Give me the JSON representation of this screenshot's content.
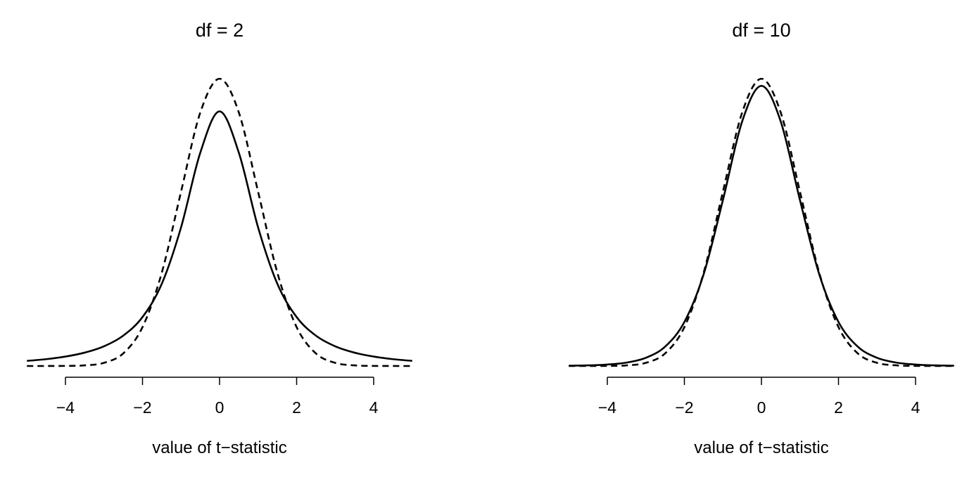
{
  "chart_data": [
    {
      "type": "line",
      "title": "df = 2",
      "xlabel": "value of t−statistic",
      "ylabel": "",
      "xlim": [
        -5,
        5
      ],
      "ylim": [
        0,
        0.4
      ],
      "x_ticks": [
        "−4",
        "−2",
        "0",
        "2",
        "4"
      ],
      "x_tick_values": [
        -4,
        -2,
        0,
        2,
        4
      ],
      "y_axis_shown": false,
      "grid": false,
      "x": [
        -5,
        -4.5,
        -4,
        -3.5,
        -3,
        -2.5,
        -2,
        -1.5,
        -1,
        -0.5,
        0,
        0.5,
        1,
        1.5,
        2,
        2.5,
        3,
        3.5,
        4,
        4.5,
        5
      ],
      "series": [
        {
          "style": "solid",
          "values": [
            0.00713,
            0.00953,
            0.0131,
            0.0186,
            0.0274,
            0.0422,
            0.068,
            0.1141,
            0.1925,
            0.2963,
            0.3536,
            0.2963,
            0.1925,
            0.1141,
            0.068,
            0.0422,
            0.0274,
            0.0186,
            0.0131,
            0.00953,
            0.00713
          ]
        },
        {
          "style": "dashed",
          "values": [
            1.5e-06,
            1.6e-05,
            0.00013,
            0.00087,
            0.0044,
            0.0175,
            0.054,
            0.1295,
            0.242,
            0.3521,
            0.3989,
            0.3521,
            0.242,
            0.1295,
            0.054,
            0.0175,
            0.0044,
            0.00087,
            0.00013,
            1.6e-05,
            1.5e-06
          ]
        }
      ]
    },
    {
      "type": "line",
      "title": "df = 10",
      "xlabel": "value of t−statistic",
      "ylabel": "",
      "xlim": [
        -5,
        5
      ],
      "ylim": [
        0,
        0.4
      ],
      "x_ticks": [
        "−4",
        "−2",
        "0",
        "2",
        "4"
      ],
      "x_tick_values": [
        -4,
        -2,
        0,
        2,
        4
      ],
      "y_axis_shown": false,
      "grid": false,
      "x": [
        -5,
        -4.5,
        -4,
        -3.5,
        -3,
        -2.5,
        -2,
        -1.5,
        -1,
        -0.5,
        0,
        0.5,
        1,
        1.5,
        2,
        2.5,
        3,
        3.5,
        4,
        4.5,
        5
      ],
      "series": [
        {
          "style": "solid",
          "values": [
            0.0004,
            0.00088,
            0.00203,
            0.00478,
            0.0114,
            0.0269,
            0.0611,
            0.1274,
            0.2304,
            0.3397,
            0.3891,
            0.3397,
            0.2304,
            0.1274,
            0.0611,
            0.0269,
            0.0114,
            0.00478,
            0.00203,
            0.00088,
            0.0004
          ]
        },
        {
          "style": "dashed",
          "values": [
            1.5e-06,
            1.6e-05,
            0.00013,
            0.00087,
            0.0044,
            0.0175,
            0.054,
            0.1295,
            0.242,
            0.3521,
            0.3989,
            0.3521,
            0.242,
            0.1295,
            0.054,
            0.0175,
            0.0044,
            0.00087,
            0.00013,
            1.6e-05,
            1.5e-06
          ]
        }
      ]
    }
  ]
}
